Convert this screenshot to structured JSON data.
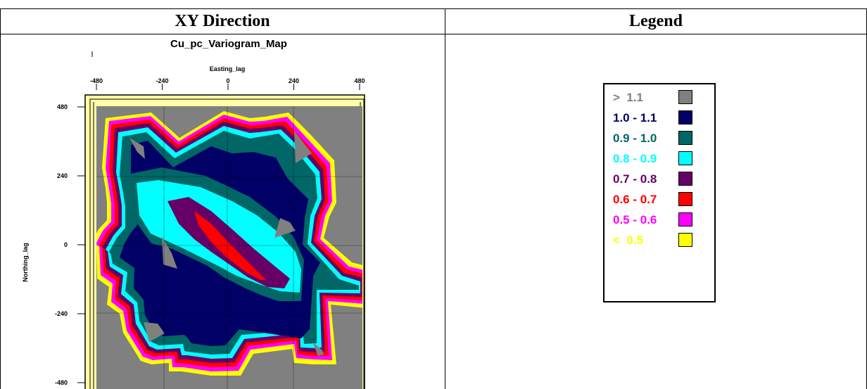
{
  "table": {
    "col1_header": "XY Direction",
    "col2_header": "Legend"
  },
  "chart_data": {
    "type": "heatmap",
    "title": "Cu_pc_Variogram_Map",
    "xlabel": "Easting_lag",
    "ylabel": "Northing_lag",
    "x_ticks": [
      "-480",
      "-240",
      "0",
      "240",
      "480"
    ],
    "y_ticks": [
      "480",
      "240",
      "0",
      "-240",
      "-480"
    ],
    "xlim": [
      -480,
      480
    ],
    "ylim": [
      -480,
      480
    ],
    "grid": true,
    "legend": {
      "title": "",
      "items": [
        {
          "label": ">  1.1",
          "color": "#808080",
          "text_color": "#808080"
        },
        {
          "label": "1.0 - 1.1",
          "color": "#000066",
          "text_color": "#000066"
        },
        {
          "label": "0.9 - 1.0",
          "color": "#006666",
          "text_color": "#006666"
        },
        {
          "label": "0.8 - 0.9",
          "color": "#00ffff",
          "text_color": "#00ffff"
        },
        {
          "label": "0.7 - 0.8",
          "color": "#660066",
          "text_color": "#660066"
        },
        {
          "label": "0.6 - 0.7",
          "color": "#ff0000",
          "text_color": "#ff0000"
        },
        {
          "label": "0.5 - 0.6",
          "color": "#ff00ff",
          "text_color": "#ff00ff"
        },
        {
          "label": "<  0.5",
          "color": "#ffff00",
          "text_color": "#ffff00"
        }
      ]
    }
  }
}
